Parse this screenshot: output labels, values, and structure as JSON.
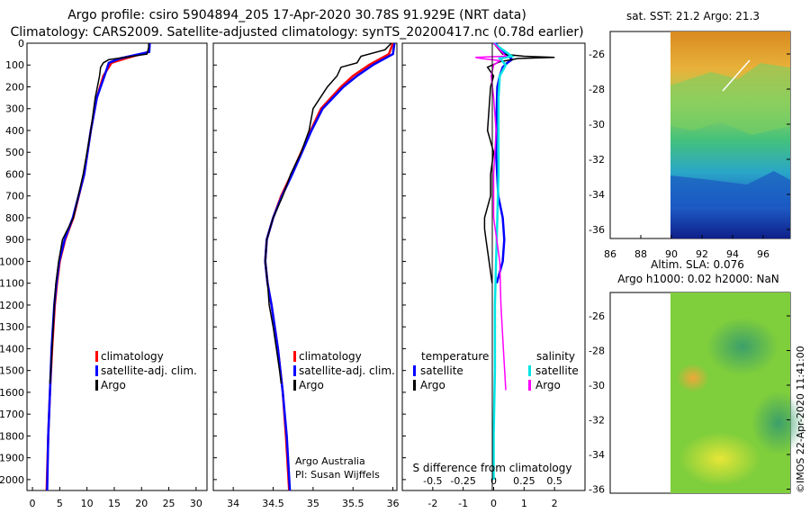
{
  "header": {
    "line1": "Argo profile: csiro 5904894_205 17-Apr-2020 30.78S 91.929E (NRT data)",
    "line2": "Climatology: CARS2009. Satellite-adjusted climatology: synTS_20200417.nc (0.78d earlier)"
  },
  "sst_title": "sat. SST: 21.2 Argo: 21.3",
  "altim_title1": "Altim. SLA: 0.076",
  "altim_title2": "Argo h1000: 0.02 h2000: NaN",
  "credit": "©IMOS 22-Apr-2020 11:41:00",
  "chart_data": [
    {
      "name": "temperature",
      "type": "line",
      "xlim": [
        -1,
        32
      ],
      "ylim": [
        0,
        2050
      ],
      "xticks": [
        "0",
        "5",
        "10",
        "15",
        "20",
        "25",
        "30"
      ],
      "yticks": [
        "0",
        "100",
        "200",
        "300",
        "400",
        "500",
        "600",
        "700",
        "800",
        "900",
        "1000",
        "1100",
        "1200",
        "1300",
        "1400",
        "1500",
        "1600",
        "1700",
        "1800",
        "1900",
        "2000"
      ],
      "legend": [
        "climatology",
        "satellite-adj. clim.",
        "Argo"
      ],
      "series": [
        {
          "name": "climatology",
          "color": "#ff0000",
          "depth": [
            0,
            40,
            70,
            90,
            150,
            250,
            400,
            600,
            800,
            900,
            1000,
            1100,
            1200,
            1400,
            1600,
            1800,
            2050
          ],
          "values": [
            21.5,
            21.3,
            17,
            14.5,
            13,
            11.8,
            10.7,
            9.5,
            7.5,
            6,
            5,
            4.5,
            4.1,
            3.6,
            3.2,
            2.9,
            2.6
          ]
        },
        {
          "name": "satellite-adj. clim.",
          "color": "#0000ff",
          "depth": [
            0,
            40,
            70,
            90,
            150,
            250,
            400,
            600,
            800,
            900,
            1000,
            1100,
            1200,
            1400,
            1600,
            1800,
            2050
          ],
          "values": [
            21.5,
            21.4,
            16,
            14,
            13.2,
            11.8,
            10.7,
            9.5,
            7.4,
            5.9,
            4.9,
            4.4,
            4.0,
            3.5,
            3.2,
            2.9,
            2.7
          ]
        },
        {
          "name": "Argo",
          "color": "#000000",
          "depth": [
            0,
            20,
            50,
            65,
            75,
            90,
            110,
            150,
            250,
            400,
            600,
            800,
            900,
            1000,
            1100,
            1200,
            1400,
            1560
          ],
          "values": [
            21.3,
            21.3,
            21.0,
            17,
            14,
            13,
            12.5,
            12.3,
            11.5,
            10.7,
            9.3,
            7.5,
            5.5,
            4.8,
            4.3,
            4.0,
            3.6,
            3.2
          ]
        }
      ]
    },
    {
      "name": "salinity",
      "type": "line",
      "xlim": [
        33.75,
        36.05
      ],
      "ylim": [
        0,
        2050
      ],
      "xticks": [
        "34",
        "34.5",
        "35",
        "35.5",
        "36"
      ],
      "legend": [
        "climatology",
        "satellite-adj. clim.",
        "Argo"
      ],
      "annotation": [
        "Argo Australia",
        "PI: Susan Wijffels"
      ],
      "series": [
        {
          "name": "climatology",
          "color": "#ff0000",
          "depth": [
            0,
            50,
            100,
            150,
            200,
            300,
            400,
            500,
            600,
            700,
            800,
            900,
            1000,
            1100,
            1200,
            1400,
            1600,
            1800,
            2050
          ],
          "values": [
            36.0,
            35.95,
            35.7,
            35.5,
            35.35,
            35.1,
            34.97,
            34.85,
            34.73,
            34.6,
            34.5,
            34.42,
            34.4,
            34.43,
            34.48,
            34.56,
            34.62,
            34.66,
            34.7
          ]
        },
        {
          "name": "satellite-adj. clim.",
          "color": "#0000ff",
          "depth": [
            0,
            50,
            100,
            150,
            200,
            300,
            400,
            500,
            600,
            700,
            800,
            900,
            1000,
            1100,
            1200,
            1400,
            1600,
            1800,
            2050
          ],
          "values": [
            36.02,
            36.0,
            35.75,
            35.55,
            35.38,
            35.12,
            34.98,
            34.86,
            34.74,
            34.61,
            34.5,
            34.42,
            34.4,
            34.43,
            34.48,
            34.56,
            34.62,
            34.67,
            34.71
          ]
        },
        {
          "name": "Argo",
          "color": "#000000",
          "depth": [
            0,
            30,
            60,
            90,
            110,
            150,
            200,
            300,
            400,
            500,
            600,
            700,
            800,
            900,
            1000,
            1100,
            1200,
            1300,
            1400,
            1500,
            1560
          ],
          "values": [
            35.98,
            35.9,
            35.6,
            35.55,
            35.35,
            35.3,
            35.18,
            35.0,
            34.95,
            34.85,
            34.72,
            34.62,
            34.5,
            34.42,
            34.4,
            34.43,
            34.45,
            34.5,
            34.54,
            34.58,
            34.6
          ]
        }
      ]
    },
    {
      "name": "difference",
      "type": "line",
      "xlabel": "S difference from climatology",
      "xlim": [
        -0.75,
        0.75
      ],
      "ylim": [
        0,
        2050
      ],
      "xticks": [
        "-0.5",
        "-0.25",
        "0",
        "0.25",
        "0.5"
      ],
      "x2ticks": [
        "-2",
        "-1",
        "0",
        "1",
        "2"
      ],
      "legend_temperature": {
        "title": "temperature",
        "items": [
          "satellite",
          "Argo"
        ]
      },
      "legend_salinity": {
        "title": "salinity",
        "items": [
          "satellite",
          "Argo"
        ]
      },
      "series": [
        {
          "name": "T satellite",
          "color": "#0000ff",
          "depth": [
            0,
            40,
            60,
            75,
            90,
            110,
            150,
            200,
            300,
            500,
            700,
            800,
            900,
            1000,
            1100
          ],
          "values": [
            0.05,
            0.3,
            0.5,
            0.6,
            0.45,
            0.3,
            0.2,
            0.12,
            0.1,
            0.08,
            0.15,
            0.3,
            0.35,
            0.3,
            0.1
          ]
        },
        {
          "name": "T Argo",
          "color": "#000000",
          "depth": [
            0,
            50,
            60,
            65,
            70,
            85,
            110,
            150,
            200,
            300,
            400,
            500,
            600,
            700,
            800,
            850,
            900,
            1000,
            1100
          ],
          "values": [
            0,
            0.3,
            1.0,
            2.0,
            0.8,
            0.2,
            -0.2,
            0,
            -0.1,
            -0.15,
            -0.2,
            0,
            -0.1,
            -0.1,
            -0.3,
            -0.3,
            -0.25,
            -0.15,
            -0.05
          ]
        },
        {
          "name": "S satellite",
          "color": "#00e5e5",
          "depth": [
            0,
            60,
            70,
            100,
            150,
            250,
            400,
            600,
            800,
            1000,
            1200,
            1500,
            1800,
            2000
          ],
          "values": [
            0,
            0.15,
            0.05,
            0.1,
            0.05,
            0.04,
            0.04,
            0.04,
            0.03,
            0.02,
            0.01,
            0.01,
            0.0,
            0.0
          ]
        },
        {
          "name": "S Argo",
          "color": "#ff00ff",
          "depth": [
            0,
            60,
            65,
            70,
            80,
            100,
            150,
            250,
            400,
            600,
            800,
            1000,
            1200,
            1400,
            1590
          ],
          "values": [
            0,
            0.1,
            -0.15,
            -0.1,
            0.05,
            0.0,
            -0.02,
            0.0,
            0.02,
            0.0,
            0.0,
            0.05,
            0.06,
            0.08,
            0.1
          ]
        }
      ]
    }
  ],
  "maps": {
    "sst": {
      "yticks": [
        "-26",
        "-28",
        "-30",
        "-32",
        "-34",
        "-36"
      ],
      "xticks": [
        "86",
        "88",
        "90",
        "92",
        "94",
        "96"
      ]
    },
    "sla": {
      "yticks": [
        "-26",
        "-28",
        "-30",
        "-32",
        "-34",
        "-36"
      ]
    }
  }
}
